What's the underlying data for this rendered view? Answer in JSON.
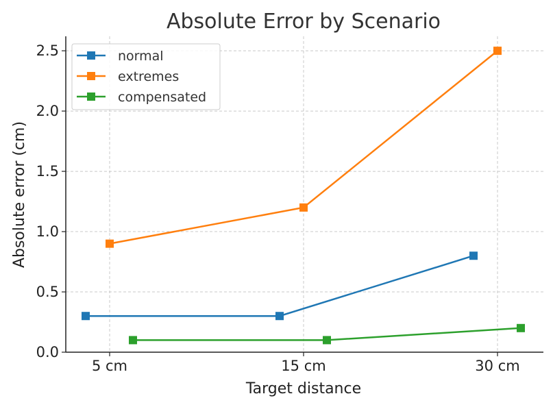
{
  "chart_data": {
    "type": "line",
    "title": "Absolute Error by Scenario",
    "xlabel": "Target distance",
    "ylabel": "Absolute error (cm)",
    "categories": [
      "5 cm",
      "15 cm",
      "30 cm"
    ],
    "ylim": [
      0,
      2.62
    ],
    "yticks": [
      "0.0",
      "0.5",
      "1.0",
      "1.5",
      "2.0",
      "2.5"
    ],
    "grid": true,
    "legend_position": "top-left",
    "series": [
      {
        "name": "normal",
        "color": "#1f77b4",
        "marker": "square",
        "values": [
          0.3,
          0.3,
          0.8
        ]
      },
      {
        "name": "extremes",
        "color": "#ff7f0e",
        "marker": "square",
        "values": [
          0.9,
          1.2,
          2.5
        ]
      },
      {
        "name": "compensated",
        "color": "#2ca02c",
        "marker": "square",
        "values": [
          0.1,
          0.1,
          0.2
        ]
      }
    ]
  }
}
